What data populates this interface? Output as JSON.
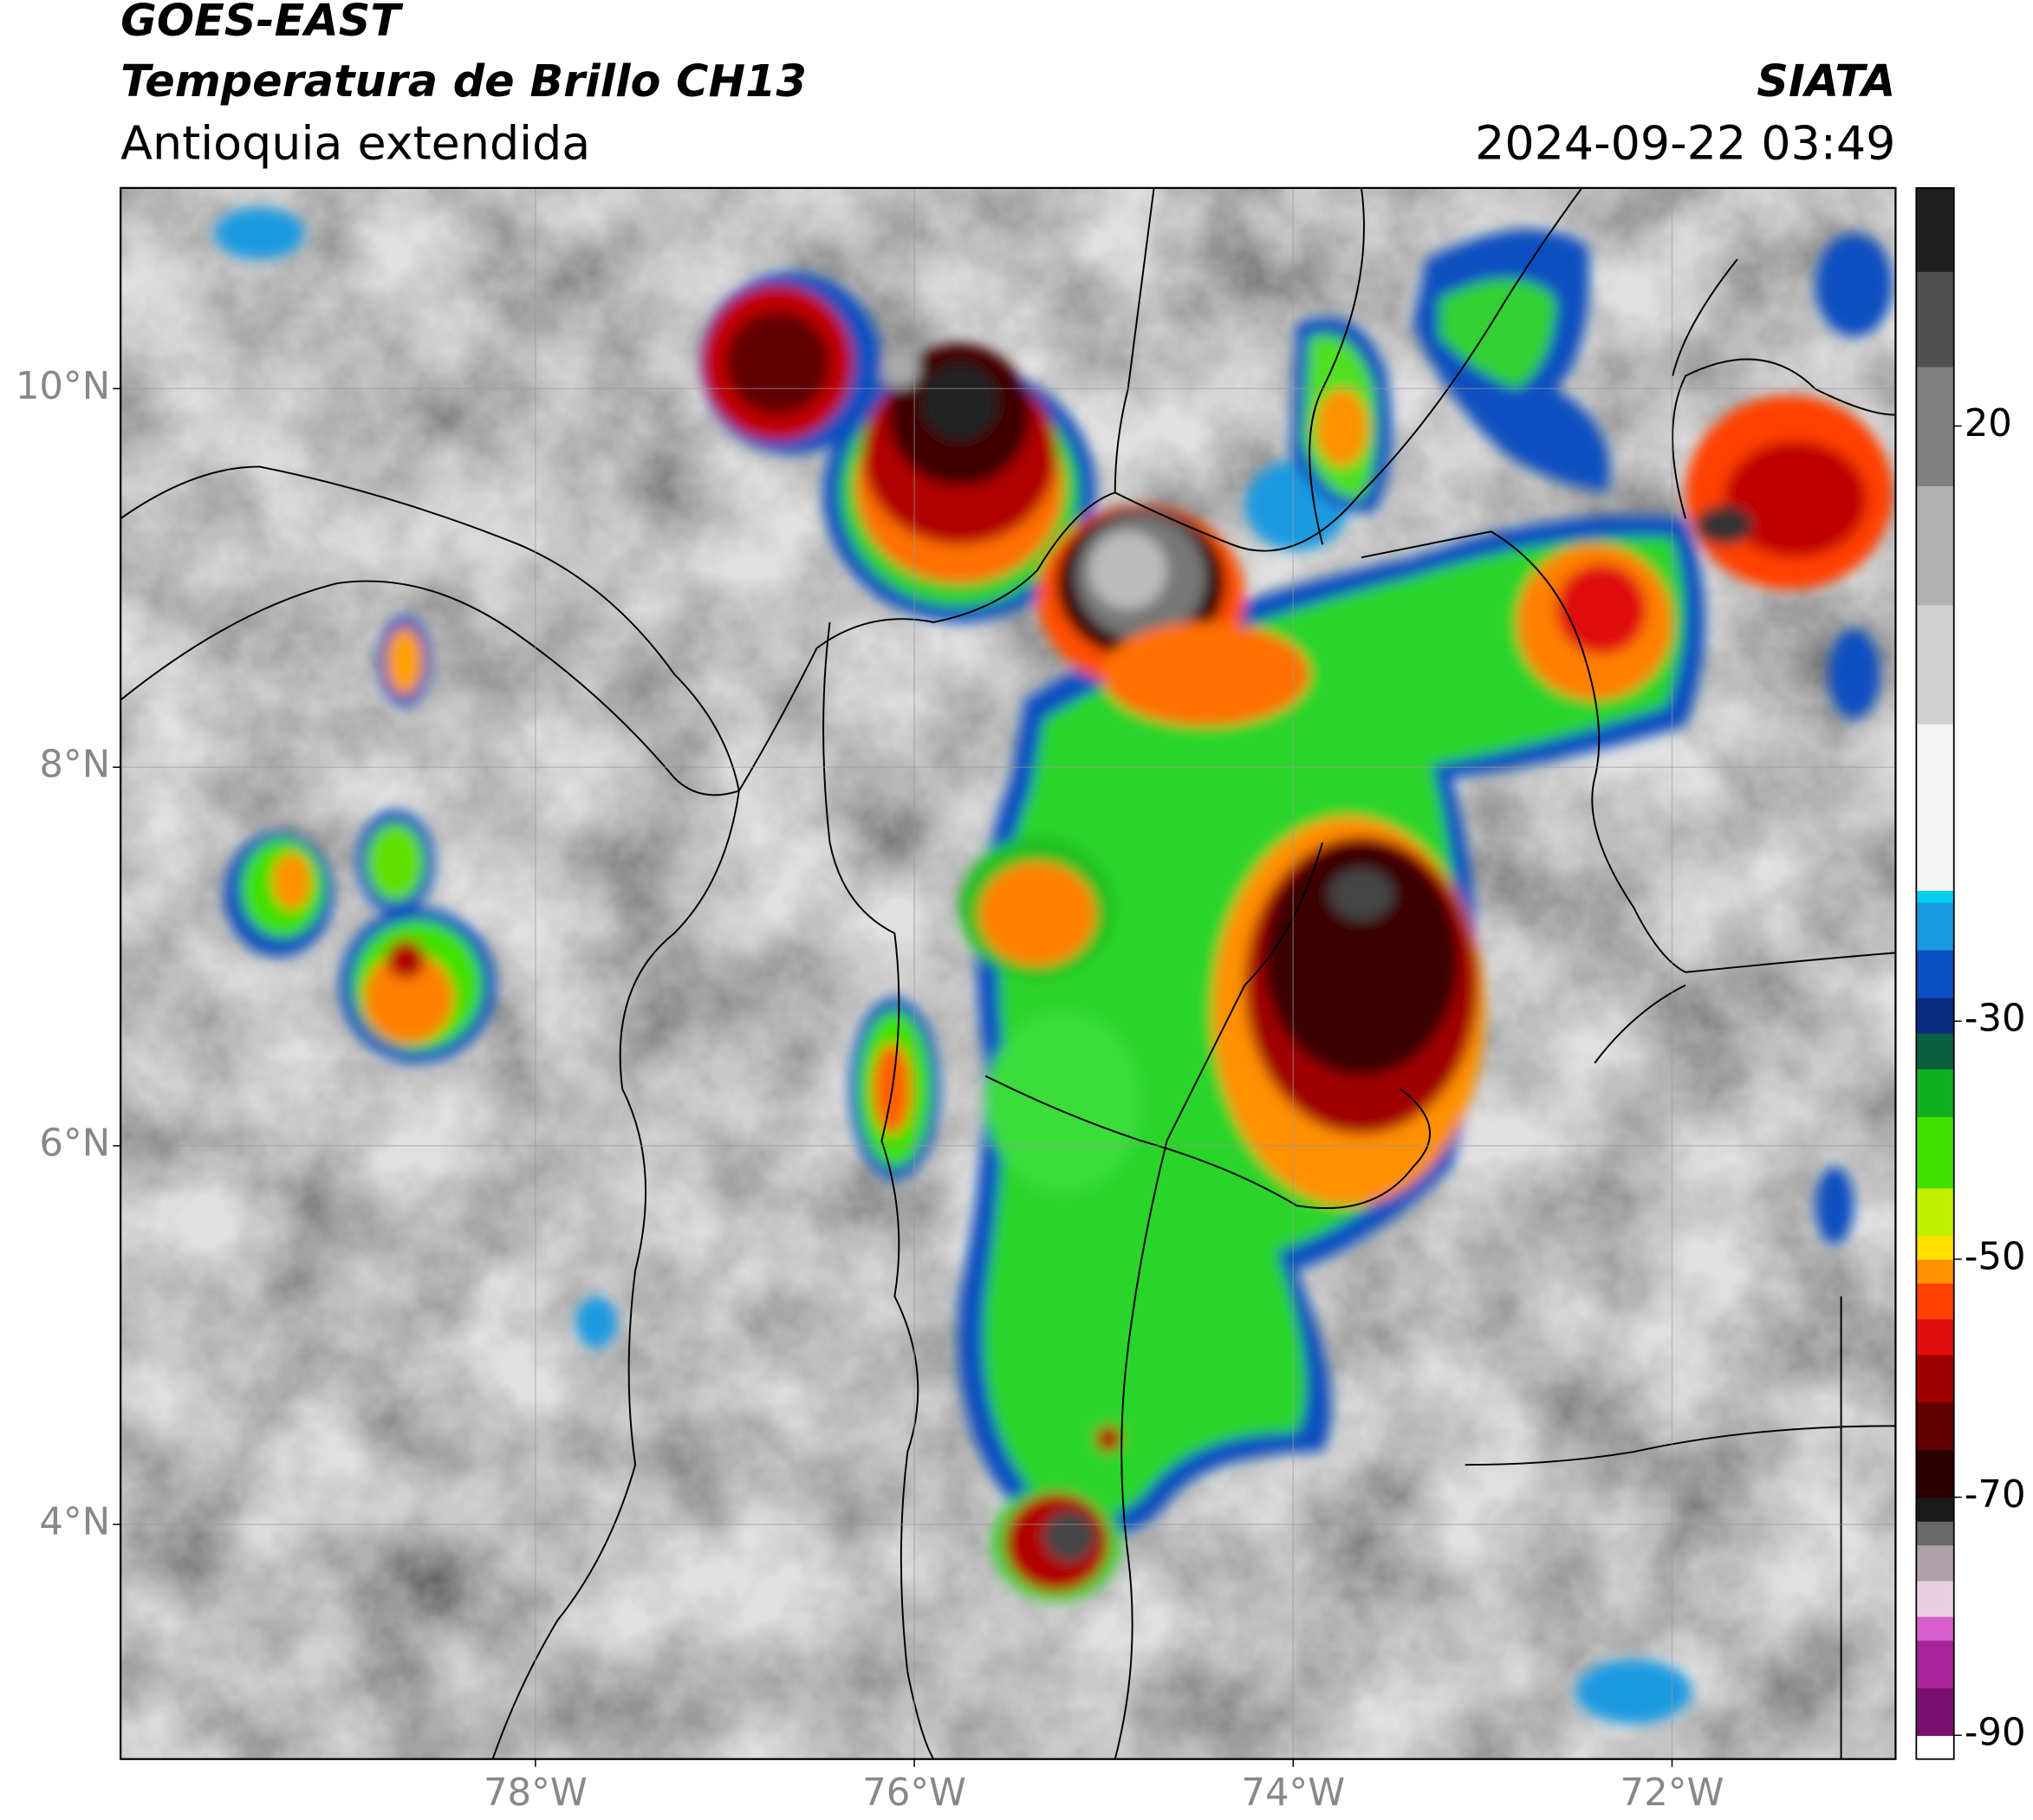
{
  "header": {
    "title": "GOES-EAST",
    "subtitle": "Temperatura de Brillo CH13",
    "region": "Antioquia extendida",
    "source": "SIATA",
    "datetime": "2024-09-22 03:49"
  },
  "chart_data": {
    "type": "map",
    "xlim": [
      -80.19,
      -70.82
    ],
    "ylim": [
      2.76,
      11.06
    ],
    "xticks": [
      {
        "value": -78,
        "label": "78°W"
      },
      {
        "value": -76,
        "label": "76°W"
      },
      {
        "value": -74,
        "label": "74°W"
      },
      {
        "value": -72,
        "label": "72°W"
      }
    ],
    "yticks": [
      {
        "value": 4,
        "label": "4°N"
      },
      {
        "value": 6,
        "label": "6°N"
      },
      {
        "value": 8,
        "label": "8°N"
      },
      {
        "value": 10,
        "label": "10°N"
      }
    ],
    "grid": true,
    "colorbar": {
      "lim": [
        -92,
        40
      ],
      "ticks": [
        -90,
        -70,
        -50,
        -30,
        20
      ],
      "stops": [
        {
          "value": -92,
          "color": "#ffffff"
        },
        {
          "value": -90,
          "color": "#7b0f6e"
        },
        {
          "value": -86,
          "color": "#a8239a"
        },
        {
          "value": -82,
          "color": "#d65fc9"
        },
        {
          "value": -80,
          "color": "#e8d0e0"
        },
        {
          "value": -77,
          "color": "#b0a0a8"
        },
        {
          "value": -74,
          "color": "#6a6a6a"
        },
        {
          "value": -72,
          "color": "#1a1a1a"
        },
        {
          "value": -70,
          "color": "#2b0000"
        },
        {
          "value": -66,
          "color": "#600000"
        },
        {
          "value": -62,
          "color": "#a00000"
        },
        {
          "value": -58,
          "color": "#e01010"
        },
        {
          "value": -55,
          "color": "#ff4000"
        },
        {
          "value": -52,
          "color": "#ff9000"
        },
        {
          "value": -50,
          "color": "#ffe000"
        },
        {
          "value": -48,
          "color": "#c0f000"
        },
        {
          "value": -44,
          "color": "#40e000"
        },
        {
          "value": -38,
          "color": "#10b020"
        },
        {
          "value": -34,
          "color": "#0a6040"
        },
        {
          "value": -31,
          "color": "#0a2a80"
        },
        {
          "value": -28,
          "color": "#0a4fc0"
        },
        {
          "value": -24,
          "color": "#1a9ae0"
        },
        {
          "value": -20,
          "color": "#00d0f0"
        },
        {
          "value": -19,
          "color": "#f4f4f4"
        },
        {
          "value": -5,
          "color": "#d0d0d0"
        },
        {
          "value": 5,
          "color": "#b0b0b0"
        },
        {
          "value": 15,
          "color": "#808080"
        },
        {
          "value": 25,
          "color": "#505050"
        },
        {
          "value": 33,
          "color": "#202020"
        }
      ]
    }
  }
}
